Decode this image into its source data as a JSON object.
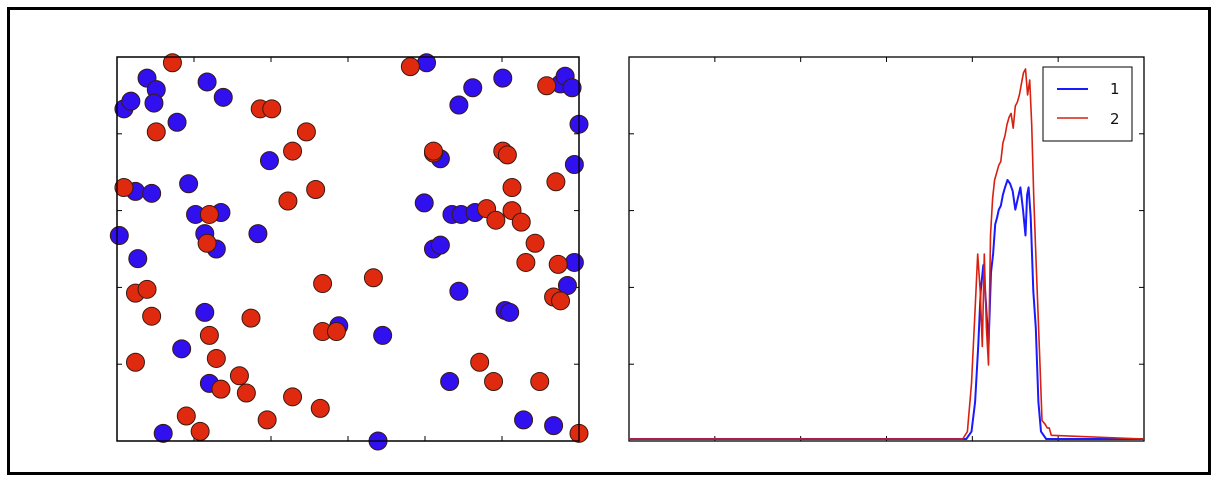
{
  "chart_data": [
    {
      "type": "scatter",
      "xlim": [
        0,
        1
      ],
      "ylim": [
        0,
        1
      ],
      "grid": false,
      "legend": "none",
      "colors": {
        "blue": "#3010ee",
        "red": "#e02a10",
        "edge": "#3a1a10"
      },
      "series": [
        {
          "color": "blue",
          "points": [
            [
              0.065,
              0.945
            ],
            [
              0.085,
              0.915
            ],
            [
              0.015,
              0.865
            ],
            [
              0.03,
              0.885
            ],
            [
              0.08,
              0.88
            ],
            [
              0.13,
              0.83
            ],
            [
              0.195,
              0.935
            ],
            [
              0.23,
              0.895
            ],
            [
              0.33,
              0.73
            ],
            [
              0.04,
              0.65
            ],
            [
              0.075,
              0.645
            ],
            [
              0.155,
              0.67
            ],
            [
              0.17,
              0.59
            ],
            [
              0.19,
              0.54
            ],
            [
              0.225,
              0.595
            ],
            [
              0.215,
              0.5
            ],
            [
              0.005,
              0.535
            ],
            [
              0.045,
              0.475
            ],
            [
              0.305,
              0.54
            ],
            [
              0.665,
              0.62
            ],
            [
              0.685,
              0.5
            ],
            [
              0.7,
              0.51
            ],
            [
              0.725,
              0.59
            ],
            [
              0.745,
              0.59
            ],
            [
              0.775,
              0.595
            ],
            [
              0.7,
              0.735
            ],
            [
              0.74,
              0.875
            ],
            [
              0.77,
              0.92
            ],
            [
              0.835,
              0.945
            ],
            [
              0.96,
              0.93
            ],
            [
              0.97,
              0.95
            ],
            [
              0.985,
              0.92
            ],
            [
              1.0,
              0.825
            ],
            [
              0.99,
              0.72
            ],
            [
              0.975,
              0.405
            ],
            [
              0.99,
              0.465
            ],
            [
              0.74,
              0.39
            ],
            [
              0.84,
              0.34
            ],
            [
              0.85,
              0.335
            ],
            [
              0.19,
              0.335
            ],
            [
              0.14,
              0.24
            ],
            [
              0.2,
              0.15
            ],
            [
              0.48,
              0.3
            ],
            [
              0.575,
              0.275
            ],
            [
              0.72,
              0.155
            ],
            [
              0.88,
              0.055
            ],
            [
              0.945,
              0.04
            ],
            [
              0.1,
              0.02
            ],
            [
              0.565,
              0.0
            ],
            [
              0.67,
              0.985
            ]
          ]
        },
        {
          "color": "red",
          "points": [
            [
              0.12,
              0.985
            ],
            [
              0.085,
              0.805
            ],
            [
              0.31,
              0.865
            ],
            [
              0.335,
              0.865
            ],
            [
              0.41,
              0.805
            ],
            [
              0.38,
              0.755
            ],
            [
              0.43,
              0.655
            ],
            [
              0.37,
              0.625
            ],
            [
              0.015,
              0.66
            ],
            [
              0.2,
              0.59
            ],
            [
              0.195,
              0.515
            ],
            [
              0.635,
              0.975
            ],
            [
              0.685,
              0.75
            ],
            [
              0.685,
              0.755
            ],
            [
              0.8,
              0.605
            ],
            [
              0.82,
              0.575
            ],
            [
              0.855,
              0.6
            ],
            [
              0.835,
              0.755
            ],
            [
              0.845,
              0.745
            ],
            [
              0.855,
              0.66
            ],
            [
              0.95,
              0.675
            ],
            [
              0.875,
              0.57
            ],
            [
              0.905,
              0.515
            ],
            [
              0.885,
              0.465
            ],
            [
              0.955,
              0.46
            ],
            [
              0.945,
              0.375
            ],
            [
              0.96,
              0.365
            ],
            [
              0.93,
              0.925
            ],
            [
              0.04,
              0.385
            ],
            [
              0.065,
              0.395
            ],
            [
              0.075,
              0.325
            ],
            [
              0.2,
              0.275
            ],
            [
              0.215,
              0.215
            ],
            [
              0.265,
              0.17
            ],
            [
              0.225,
              0.135
            ],
            [
              0.28,
              0.125
            ],
            [
              0.29,
              0.32
            ],
            [
              0.445,
              0.41
            ],
            [
              0.555,
              0.425
            ],
            [
              0.445,
              0.285
            ],
            [
              0.475,
              0.285
            ],
            [
              0.04,
              0.205
            ],
            [
              0.38,
              0.115
            ],
            [
              0.44,
              0.085
            ],
            [
              0.325,
              0.055
            ],
            [
              0.15,
              0.065
            ],
            [
              0.18,
              0.025
            ],
            [
              0.785,
              0.205
            ],
            [
              0.815,
              0.155
            ],
            [
              0.915,
              0.155
            ],
            [
              1.0,
              0.02
            ]
          ]
        }
      ]
    },
    {
      "type": "line",
      "xlim": [
        0,
        1
      ],
      "ylim": [
        0,
        1
      ],
      "grid": false,
      "legend": "top-right",
      "series": [
        {
          "name": "1",
          "color": "#1a1aff",
          "x": [
            0,
            0.655,
            0.665,
            0.672,
            0.678,
            0.683,
            0.688,
            0.693,
            0.698,
            0.703,
            0.707,
            0.711,
            0.715,
            0.718,
            0.722,
            0.726,
            0.73,
            0.735,
            0.74,
            0.745,
            0.75,
            0.755,
            0.76,
            0.765,
            0.77,
            0.773,
            0.776,
            0.78,
            0.785,
            0.79,
            0.795,
            0.8,
            0.81,
            1.0
          ],
          "y": [
            0,
            0,
            0.02,
            0.1,
            0.25,
            0.4,
            0.47,
            0.37,
            0.25,
            0.45,
            0.5,
            0.58,
            0.6,
            0.62,
            0.63,
            0.66,
            0.68,
            0.7,
            0.69,
            0.67,
            0.62,
            0.65,
            0.68,
            0.62,
            0.55,
            0.66,
            0.68,
            0.6,
            0.4,
            0.3,
            0.1,
            0.02,
            0,
            0
          ]
        },
        {
          "name": "2",
          "color": "#d82010",
          "x": [
            0,
            0.648,
            0.657,
            0.665,
            0.672,
            0.677,
            0.682,
            0.686,
            0.69,
            0.694,
            0.698,
            0.702,
            0.706,
            0.71,
            0.714,
            0.718,
            0.722,
            0.726,
            0.73,
            0.734,
            0.738,
            0.742,
            0.746,
            0.75,
            0.754,
            0.758,
            0.762,
            0.766,
            0.77,
            0.774,
            0.778,
            0.782,
            0.786,
            0.79,
            0.794,
            0.798,
            0.802,
            0.808,
            0.812,
            0.816,
            0.82,
            1.0
          ],
          "y": [
            0,
            0,
            0.02,
            0.15,
            0.35,
            0.5,
            0.4,
            0.25,
            0.5,
            0.3,
            0.2,
            0.55,
            0.65,
            0.7,
            0.72,
            0.74,
            0.75,
            0.8,
            0.82,
            0.85,
            0.87,
            0.88,
            0.84,
            0.9,
            0.91,
            0.93,
            0.96,
            0.99,
            1.0,
            0.93,
            0.97,
            0.85,
            0.65,
            0.5,
            0.35,
            0.2,
            0.05,
            0.04,
            0.03,
            0.03,
            0.01,
            0
          ]
        }
      ]
    }
  ]
}
